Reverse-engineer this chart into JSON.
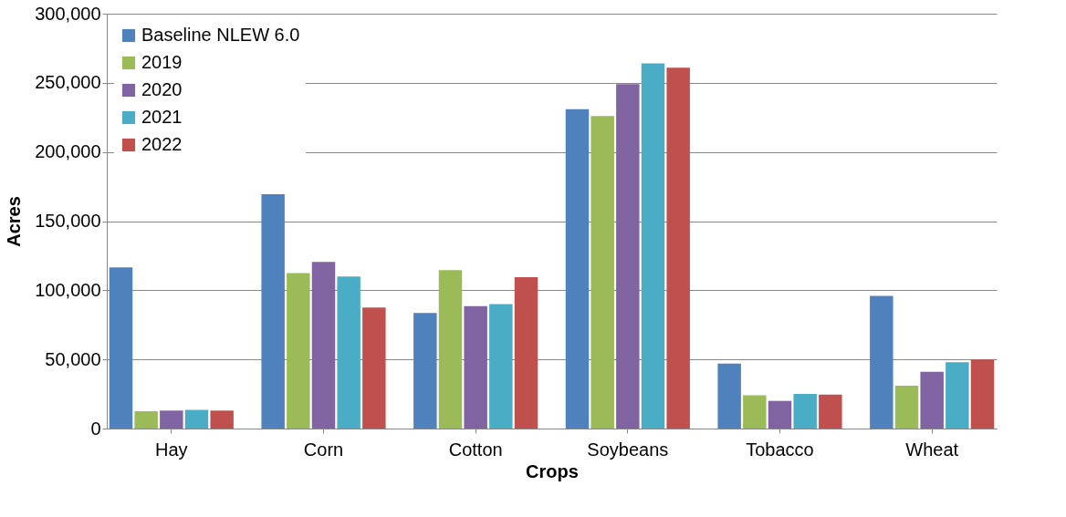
{
  "chart_data": {
    "type": "bar",
    "xlabel": "Crops",
    "ylabel": "Acres",
    "categories": [
      "Hay",
      "Corn",
      "Cotton",
      "Soybeans",
      "Tobacco",
      "Wheat"
    ],
    "series": [
      {
        "name": "Baseline NLEW 6.0",
        "color": "#4f81bd",
        "values": [
          116500,
          169500,
          83500,
          231000,
          47000,
          96000
        ]
      },
      {
        "name": "2019",
        "color": "#9bbb59",
        "values": [
          12500,
          112500,
          114500,
          226000,
          24000,
          31000
        ]
      },
      {
        "name": "2020",
        "color": "#8064a2",
        "values": [
          13000,
          120500,
          88500,
          249000,
          20000,
          41000
        ]
      },
      {
        "name": "2021",
        "color": "#4bacc6",
        "values": [
          13500,
          110000,
          90000,
          264000,
          25000,
          48000
        ]
      },
      {
        "name": "2022",
        "color": "#c0504d",
        "values": [
          13000,
          87500,
          109500,
          261000,
          24500,
          50000
        ]
      }
    ],
    "ylim": [
      0,
      300000
    ],
    "yticks": [
      0,
      {
        "value": 50000,
        "label": "50,000"
      },
      {
        "value": 100000,
        "label": "100,000"
      },
      {
        "value": 150000,
        "label": "150,000"
      },
      {
        "value": 200000,
        "label": "200,000"
      },
      {
        "value": 250000,
        "label": "250,000"
      },
      {
        "value": 300000,
        "label": "300,000"
      }
    ],
    "grid": "y",
    "legend": "top left"
  }
}
